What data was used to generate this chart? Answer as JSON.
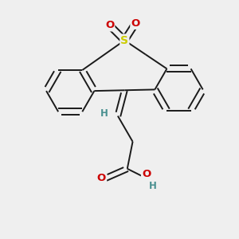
{
  "background_color": "#efefef",
  "figsize": [
    3.0,
    3.0
  ],
  "dpi": 100,
  "bond_color": "#1a1a1a",
  "bond_width": 1.4,
  "S_color": "#cccc00",
  "O_color": "#cc0000",
  "H_color": "#4a9090",
  "font_size": 8.5,
  "xlim": [
    -1.6,
    1.6
  ],
  "ylim": [
    -1.9,
    1.6
  ]
}
